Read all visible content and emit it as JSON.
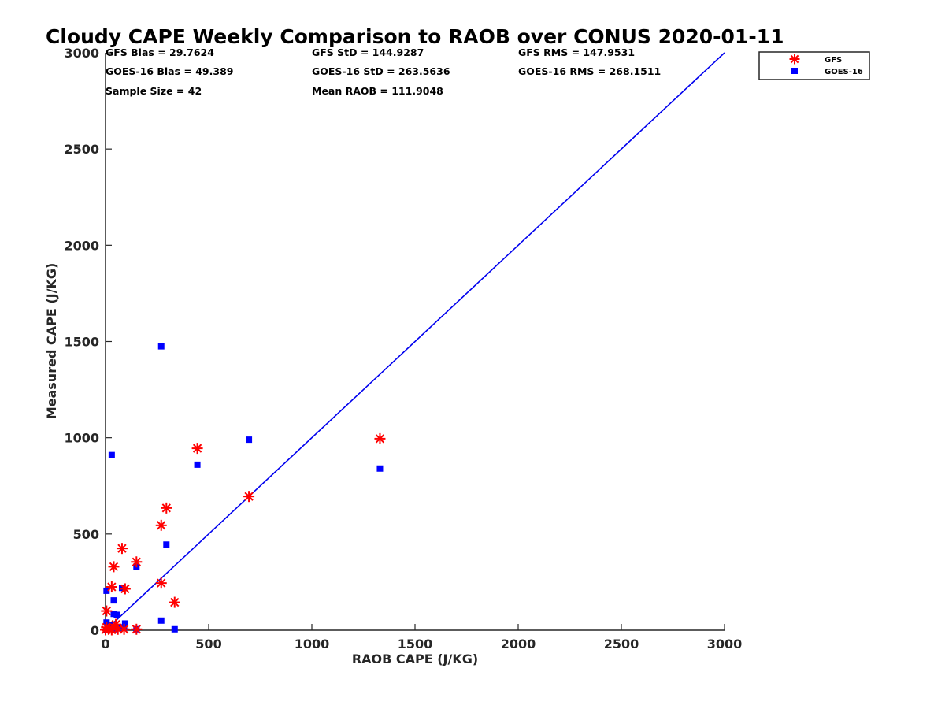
{
  "chart_data": {
    "type": "scatter",
    "title": "Cloudy CAPE Weekly Comparison to RAOB over CONUS 2020-01-11",
    "xlabel": "RAOB CAPE (J/KG)",
    "ylabel": "Measured CAPE (J/KG)",
    "xlim": [
      0,
      3000
    ],
    "ylim": [
      0,
      3000
    ],
    "xticks": [
      "0",
      "500",
      "1000",
      "1500",
      "2000",
      "2500",
      "3000"
    ],
    "yticks": [
      "0",
      "500",
      "1000",
      "1500",
      "2000",
      "2500",
      "3000"
    ],
    "grid": false,
    "legend_position": "top-right",
    "reference_line": {
      "name": "1:1 line",
      "color": "#0000ee",
      "from": [
        0,
        0
      ],
      "to": [
        3000,
        3000
      ]
    },
    "stats": [
      {
        "label": "GFS Bias = 29.7624"
      },
      {
        "label": "GFS StD = 144.9287"
      },
      {
        "label": "GFS RMS = 147.9531"
      },
      {
        "label": "GOES-16 Bias = 49.389"
      },
      {
        "label": "GOES-16 StD = 263.5636"
      },
      {
        "label": "GOES-16 RMS = 268.1511"
      },
      {
        "label": "Sample Size = 42"
      },
      {
        "label": "Mean RAOB = 111.9048"
      }
    ],
    "series": [
      {
        "name": "GFS",
        "marker": "asterisk",
        "color": "#ff0000",
        "points": [
          [
            445,
            945
          ],
          [
            1330,
            995
          ],
          [
            695,
            695
          ],
          [
            295,
            635
          ],
          [
            270,
            545
          ],
          [
            80,
            425
          ],
          [
            150,
            355
          ],
          [
            40,
            330
          ],
          [
            270,
            245
          ],
          [
            30,
            225
          ],
          [
            95,
            215
          ],
          [
            335,
            145
          ],
          [
            5,
            100
          ],
          [
            50,
            30
          ],
          [
            5,
            15
          ],
          [
            15,
            5
          ],
          [
            30,
            2
          ],
          [
            60,
            5
          ],
          [
            90,
            5
          ],
          [
            150,
            5
          ],
          [
            0,
            2
          ],
          [
            20,
            10
          ]
        ]
      },
      {
        "name": "GOES-16",
        "marker": "square",
        "color": "#0000ff",
        "points": [
          [
            270,
            1475
          ],
          [
            695,
            990
          ],
          [
            30,
            910
          ],
          [
            445,
            860
          ],
          [
            1330,
            840
          ],
          [
            295,
            445
          ],
          [
            150,
            330
          ],
          [
            80,
            220
          ],
          [
            5,
            205
          ],
          [
            40,
            155
          ],
          [
            40,
            85
          ],
          [
            55,
            80
          ],
          [
            270,
            50
          ],
          [
            5,
            40
          ],
          [
            95,
            35
          ],
          [
            20,
            25
          ],
          [
            10,
            10
          ],
          [
            30,
            10
          ],
          [
            60,
            10
          ],
          [
            150,
            5
          ],
          [
            335,
            5
          ],
          [
            90,
            15
          ],
          [
            5,
            0
          ],
          [
            45,
            5
          ]
        ]
      }
    ]
  }
}
